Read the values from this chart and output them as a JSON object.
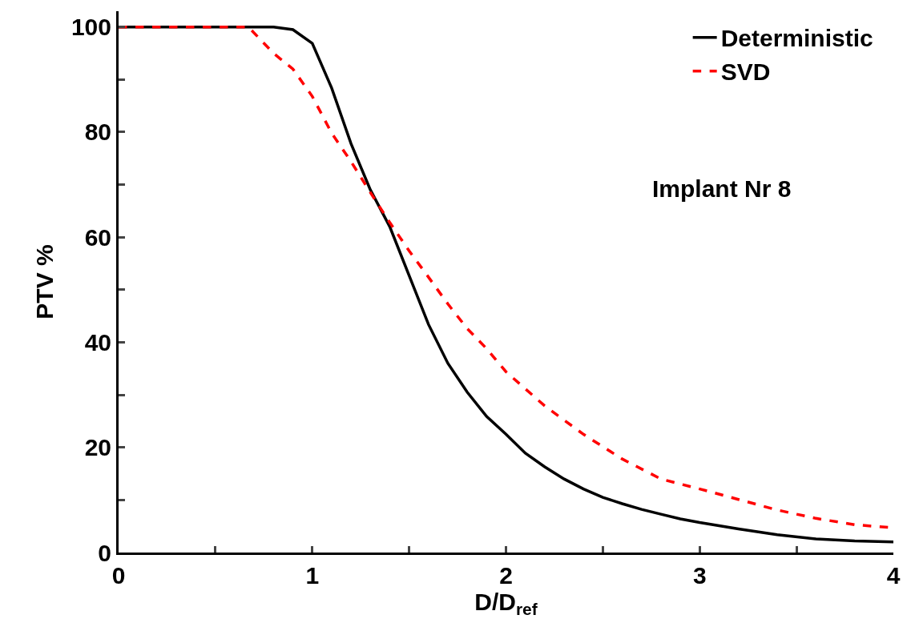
{
  "chart_data": {
    "type": "line",
    "xlabel": "D/D$_{ref}$",
    "ylabel": "PTV %",
    "annotations": [
      "Implant Nr 8"
    ],
    "series": [
      {
        "name": "Deterministic",
        "color": "#000000",
        "line_style": "solid",
        "x": [
          0,
          0.8,
          0.9,
          1.0,
          1.1,
          1.2,
          1.3,
          1.4,
          1.5,
          1.6,
          1.7,
          1.8,
          1.9,
          2.0,
          2.1,
          2.2,
          2.3,
          2.4,
          2.5,
          2.6,
          2.7,
          2.8,
          2.9,
          3.0,
          3.2,
          3.4,
          3.6,
          3.8,
          4.0
        ],
        "values": [
          100,
          100,
          99.5,
          96.9,
          88.4,
          77.8,
          69,
          62,
          52.7,
          43.4,
          36,
          30.5,
          25.9,
          22.5,
          18.9,
          16.3,
          14,
          12.1,
          10.5,
          9.3,
          8.2,
          7.3,
          6.4,
          5.7,
          4.5,
          3.4,
          2.6,
          2.2,
          2.0
        ]
      },
      {
        "name": "SVD",
        "color": "#ff0000",
        "line_style": "dashed",
        "x": [
          0,
          0.67,
          0.8,
          0.9,
          1.0,
          1.1,
          1.2,
          1.3,
          1.4,
          1.5,
          1.6,
          1.7,
          1.8,
          1.9,
          2.0,
          2.2,
          2.4,
          2.6,
          2.8,
          3.0,
          3.2,
          3.4,
          3.6,
          3.8,
          4.0
        ],
        "values": [
          100,
          100,
          95,
          92,
          86.8,
          79.8,
          74.4,
          68.5,
          62.8,
          57.4,
          52.4,
          47.3,
          42.6,
          38.8,
          34.4,
          27.9,
          22.5,
          17.8,
          14,
          12.1,
          10.1,
          8.1,
          6.5,
          5.3,
          4.7
        ]
      }
    ],
    "xlim": [
      0,
      4
    ],
    "xticks": [
      0,
      {
        "value": 0.5,
        "label": null
      },
      1,
      {
        "value": 1.5,
        "label": null
      },
      2,
      {
        "value": 2.5,
        "label": null
      },
      3,
      {
        "value": 3.5,
        "label": null
      },
      4
    ],
    "ylim": [
      0,
      103
    ],
    "yticks": [
      0,
      {
        "value": 10,
        "label": null
      },
      20,
      {
        "value": 30,
        "label": null
      },
      40,
      {
        "value": 50,
        "label": null
      },
      60,
      {
        "value": 70,
        "label": null
      },
      80,
      {
        "value": 90,
        "label": null
      },
      100
    ],
    "grid": false,
    "legend": "top right",
    "marker": "none"
  }
}
